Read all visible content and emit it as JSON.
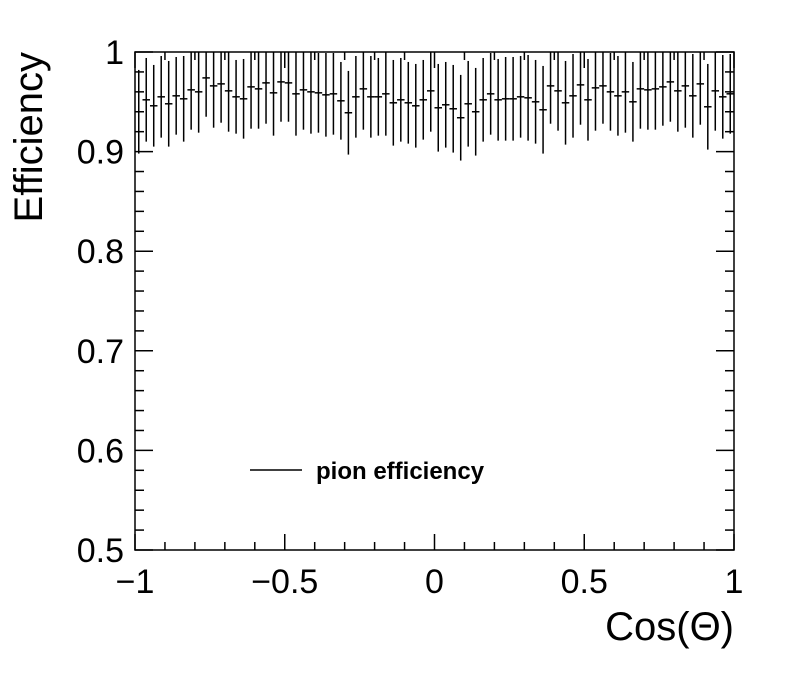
{
  "chart_data": {
    "type": "scatter",
    "title": "",
    "xlabel": "Cos(Θ)",
    "ylabel": "Efficiency",
    "xlim": [
      -1,
      1
    ],
    "ylim": [
      0.5,
      1
    ],
    "x_ticks": [
      "−1",
      "−0.5",
      "0",
      "0.5",
      "1"
    ],
    "y_ticks": [
      "0.5",
      "0.6",
      "0.7",
      "0.8",
      "0.9",
      "1"
    ],
    "grid": false,
    "legend_position": "bottom-left",
    "series": [
      {
        "name": "pion efficiency",
        "color": "#000000",
        "bin_width": 0.025,
        "x": [
          -0.9875,
          -0.9625,
          -0.9375,
          -0.9125,
          -0.8875,
          -0.8625,
          -0.8375,
          -0.8125,
          -0.7875,
          -0.7625,
          -0.7375,
          -0.7125,
          -0.6875,
          -0.6625,
          -0.6375,
          -0.6125,
          -0.5875,
          -0.5625,
          -0.5375,
          -0.5125,
          -0.4875,
          -0.4625,
          -0.4375,
          -0.4125,
          -0.3875,
          -0.3625,
          -0.3375,
          -0.3125,
          -0.2875,
          -0.2625,
          -0.2375,
          -0.2125,
          -0.1875,
          -0.1625,
          -0.1375,
          -0.1125,
          -0.0875,
          -0.0625,
          -0.0375,
          -0.0125,
          0.0125,
          0.0375,
          0.0625,
          0.0875,
          0.1125,
          0.1375,
          0.1625,
          0.1875,
          0.2125,
          0.2375,
          0.2625,
          0.2875,
          0.3125,
          0.3375,
          0.3625,
          0.3875,
          0.4125,
          0.4375,
          0.4625,
          0.4875,
          0.5125,
          0.5375,
          0.5625,
          0.5875,
          0.6125,
          0.6375,
          0.6625,
          0.6875,
          0.7125,
          0.7375,
          0.7625,
          0.7875,
          0.8125,
          0.8375,
          0.8625,
          0.8875,
          0.9125,
          0.9375,
          0.9625,
          0.9875
        ],
        "y": [
          0.94,
          0.952,
          0.946,
          0.955,
          0.948,
          0.956,
          0.953,
          0.962,
          0.96,
          0.974,
          0.966,
          0.968,
          0.961,
          0.955,
          0.953,
          0.965,
          0.963,
          0.969,
          0.959,
          0.97,
          0.969,
          0.958,
          0.962,
          0.96,
          0.959,
          0.957,
          0.958,
          0.951,
          0.939,
          0.955,
          0.963,
          0.955,
          0.955,
          0.958,
          0.949,
          0.952,
          0.949,
          0.946,
          0.952,
          0.961,
          0.944,
          0.947,
          0.943,
          0.934,
          0.948,
          0.94,
          0.952,
          0.958,
          0.952,
          0.953,
          0.953,
          0.955,
          0.954,
          0.95,
          0.942,
          0.966,
          0.961,
          0.949,
          0.956,
          0.967,
          0.952,
          0.964,
          0.966,
          0.96,
          0.956,
          0.96,
          0.95,
          0.963,
          0.962,
          0.963,
          0.965,
          0.97,
          0.961,
          0.966,
          0.956,
          0.968,
          0.945,
          0.961,
          0.955,
          0.958
        ],
        "err": [
          0.042,
          0.042,
          0.041,
          0.041,
          0.043,
          0.039,
          0.043,
          0.04,
          0.041,
          0.039,
          0.042,
          0.039,
          0.041,
          0.037,
          0.04,
          0.042,
          0.04,
          0.041,
          0.043,
          0.04,
          0.039,
          0.042,
          0.04,
          0.042,
          0.04,
          0.042,
          0.041,
          0.039,
          0.042,
          0.041,
          0.041,
          0.041,
          0.039,
          0.042,
          0.043,
          0.042,
          0.041,
          0.042,
          0.04,
          0.041,
          0.044,
          0.043,
          0.044,
          0.043,
          0.043,
          0.044,
          0.042,
          0.041,
          0.041,
          0.042,
          0.042,
          0.041,
          0.043,
          0.042,
          0.044,
          0.038,
          0.04,
          0.042,
          0.042,
          0.04,
          0.041,
          0.043,
          0.038,
          0.039,
          0.04,
          0.041,
          0.04,
          0.04,
          0.04,
          0.041,
          0.039,
          0.04,
          0.041,
          0.042,
          0.042,
          0.041,
          0.043,
          0.04,
          0.042,
          0.04
        ]
      }
    ]
  }
}
